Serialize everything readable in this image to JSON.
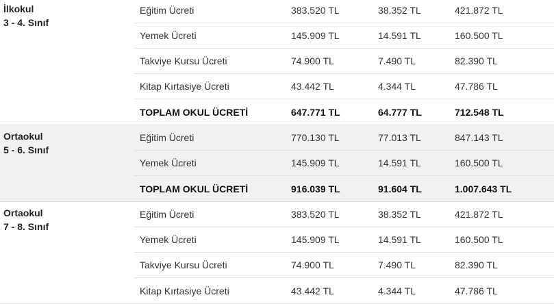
{
  "sections": [
    {
      "level": "İlkokul",
      "grade": "3 - 4. Sınıf",
      "rows": [
        {
          "item": "Eğitim Ücreti",
          "v1": "383.520 TL",
          "v2": "38.352 TL",
          "v3": "421.872 TL"
        },
        {
          "item": "Yemek Ücreti",
          "v1": "145.909 TL",
          "v2": "14.591 TL",
          "v3": "160.500 TL"
        },
        {
          "item": "Takviye Kursu Ücreti",
          "v1": "74.900 TL",
          "v2": "7.490 TL",
          "v3": "82.390 TL"
        },
        {
          "item": "Kitap Kırtasiye Ücreti",
          "v1": "43.442 TL",
          "v2": "4.344 TL",
          "v3": "47.786 TL"
        },
        {
          "item": "TOPLAM OKUL ÜCRETİ",
          "v1": "647.771 TL",
          "v2": "64.777 TL",
          "v3": "712.548 TL",
          "total": true
        }
      ]
    },
    {
      "level": "Ortaokul",
      "grade": "5 - 6. Sınıf",
      "rows": [
        {
          "item": "Eğitim Ücreti",
          "v1": "770.130 TL",
          "v2": "77.013 TL",
          "v3": "847.143 TL"
        },
        {
          "item": "Yemek Ücreti",
          "v1": "145.909 TL",
          "v2": "14.591 TL",
          "v3": "160.500 TL"
        },
        {
          "item": "TOPLAM OKUL ÜCRETİ",
          "v1": "916.039 TL",
          "v2": "91.604 TL",
          "v3": "1.007.643 TL",
          "total": true
        }
      ]
    },
    {
      "level": "Ortaokul",
      "grade": "7 - 8. Sınıf",
      "rows": [
        {
          "item": "Eğitim Ücreti",
          "v1": "383.520 TL",
          "v2": "38.352 TL",
          "v3": "421.872 TL"
        },
        {
          "item": "Yemek Ücreti",
          "v1": "145.909 TL",
          "v2": "14.591 TL",
          "v3": "160.500 TL"
        },
        {
          "item": "Takviye Kursu Ücreti",
          "v1": "74.900 TL",
          "v2": "7.490 TL",
          "v3": "82.390 TL"
        },
        {
          "item": "Kitap Kırtasiye Ücreti",
          "v1": "43.442 TL",
          "v2": "4.344 TL",
          "v3": "47.786 TL"
        }
      ]
    }
  ]
}
